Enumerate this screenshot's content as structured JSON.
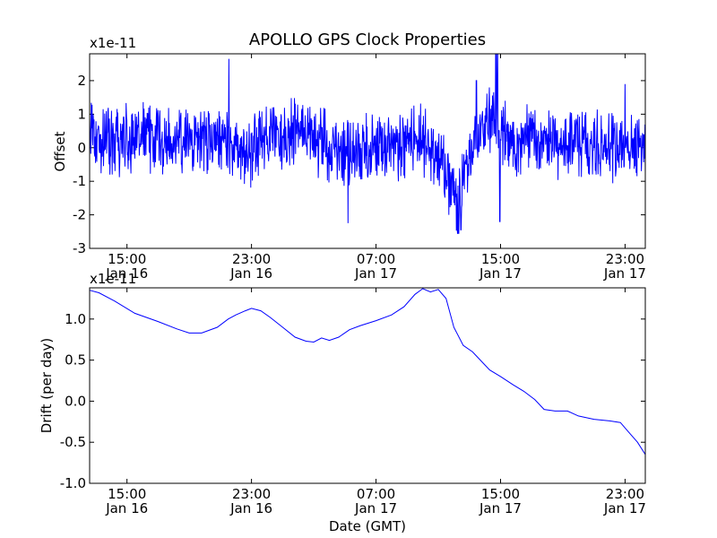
{
  "figure_title": "APOLLO GPS Clock Properties",
  "chart_data": [
    {
      "type": "line",
      "title": "APOLLO GPS Clock Properties",
      "ylabel": "Offset",
      "xlabel": "",
      "y_multiplier": "x1e-11",
      "ylim": [
        -3,
        2.8
      ],
      "yticks": [
        -3,
        -2,
        -1,
        0,
        1,
        2
      ],
      "ytick_labels": [
        "-3",
        "-2",
        "-1",
        "0",
        "1",
        "2"
      ],
      "xlim_hours": [
        12.6,
        48.3
      ],
      "xticks_hours": [
        15,
        23,
        31,
        39,
        47
      ],
      "xtick_labels": [
        {
          "time": "15:00",
          "date": "Jan 16"
        },
        {
          "time": "23:00",
          "date": "Jan 16"
        },
        {
          "time": "07:00",
          "date": "Jan 17"
        },
        {
          "time": "15:00",
          "date": "Jan 17"
        },
        {
          "time": "23:00",
          "date": "Jan 17"
        }
      ],
      "line_color": "#0000ff",
      "series": [
        {
          "name": "Offset",
          "note": "high-frequency noise around a slowly varying level (units of 1e-11)",
          "level_points": [
            [
              12.6,
              0.3
            ],
            [
              14.0,
              0.1
            ],
            [
              16.0,
              0.4
            ],
            [
              18.0,
              0.1
            ],
            [
              19.5,
              0.2
            ],
            [
              21.0,
              0.3
            ],
            [
              22.5,
              -0.2
            ],
            [
              24.0,
              0.3
            ],
            [
              26.0,
              0.5
            ],
            [
              27.5,
              0.2
            ],
            [
              29.0,
              -0.1
            ],
            [
              30.5,
              0.0
            ],
            [
              32.0,
              0.0
            ],
            [
              34.0,
              0.3
            ],
            [
              35.5,
              -0.8
            ],
            [
              36.3,
              -1.6
            ],
            [
              37.0,
              -0.3
            ],
            [
              38.0,
              0.8
            ],
            [
              39.0,
              0.5
            ],
            [
              40.5,
              0.2
            ],
            [
              42.0,
              0.1
            ],
            [
              44.0,
              0.1
            ],
            [
              46.0,
              0.0
            ],
            [
              48.3,
              0.0
            ]
          ],
          "spikes": [
            [
              21.55,
              2.65
            ],
            [
              29.2,
              -2.25
            ],
            [
              36.3,
              -2.55
            ],
            [
              36.45,
              -2.45
            ],
            [
              37.45,
              2.0
            ],
            [
              38.7,
              2.8
            ],
            [
              38.8,
              2.8
            ],
            [
              38.95,
              -2.2
            ],
            [
              47.0,
              1.9
            ]
          ]
        }
      ]
    },
    {
      "type": "line",
      "title": "",
      "ylabel": "Drift (per day)",
      "xlabel": "Date (GMT)",
      "y_multiplier": "x1e-11",
      "ylim": [
        -1.0,
        1.38
      ],
      "yticks": [
        -1.0,
        -0.5,
        0.0,
        0.5,
        1.0
      ],
      "ytick_labels": [
        "-1.0",
        "-0.5",
        "0.0",
        "0.5",
        "1.0"
      ],
      "xlim_hours": [
        12.6,
        48.3
      ],
      "xticks_hours": [
        15,
        23,
        31,
        39,
        47
      ],
      "xtick_labels": [
        {
          "time": "15:00",
          "date": "Jan 16"
        },
        {
          "time": "23:00",
          "date": "Jan 16"
        },
        {
          "time": "07:00",
          "date": "Jan 17"
        },
        {
          "time": "15:00",
          "date": "Jan 17"
        },
        {
          "time": "23:00",
          "date": "Jan 17"
        }
      ],
      "line_color": "#0000ff",
      "series": [
        {
          "name": "Drift",
          "points": [
            [
              12.6,
              1.35
            ],
            [
              13.2,
              1.32
            ],
            [
              14.2,
              1.22
            ],
            [
              15.5,
              1.07
            ],
            [
              17.0,
              0.97
            ],
            [
              18.2,
              0.88
            ],
            [
              19.0,
              0.83
            ],
            [
              19.8,
              0.83
            ],
            [
              20.8,
              0.9
            ],
            [
              21.5,
              1.0
            ],
            [
              22.0,
              1.05
            ],
            [
              22.6,
              1.1
            ],
            [
              23.0,
              1.13
            ],
            [
              23.6,
              1.1
            ],
            [
              24.2,
              1.02
            ],
            [
              25.0,
              0.9
            ],
            [
              25.8,
              0.78
            ],
            [
              26.5,
              0.73
            ],
            [
              27.0,
              0.72
            ],
            [
              27.5,
              0.77
            ],
            [
              28.0,
              0.74
            ],
            [
              28.6,
              0.78
            ],
            [
              29.3,
              0.87
            ],
            [
              30.0,
              0.92
            ],
            [
              31.0,
              0.98
            ],
            [
              32.0,
              1.05
            ],
            [
              32.8,
              1.15
            ],
            [
              33.5,
              1.3
            ],
            [
              34.0,
              1.37
            ],
            [
              34.5,
              1.33
            ],
            [
              35.0,
              1.36
            ],
            [
              35.5,
              1.25
            ],
            [
              36.0,
              0.9
            ],
            [
              36.6,
              0.68
            ],
            [
              37.2,
              0.6
            ],
            [
              37.8,
              0.48
            ],
            [
              38.3,
              0.38
            ],
            [
              39.0,
              0.3
            ],
            [
              39.8,
              0.2
            ],
            [
              40.5,
              0.12
            ],
            [
              41.2,
              0.02
            ],
            [
              41.8,
              -0.1
            ],
            [
              42.5,
              -0.12
            ],
            [
              43.3,
              -0.12
            ],
            [
              44.0,
              -0.18
            ],
            [
              45.0,
              -0.22
            ],
            [
              46.0,
              -0.24
            ],
            [
              46.7,
              -0.26
            ],
            [
              47.2,
              -0.37
            ],
            [
              47.8,
              -0.5
            ],
            [
              48.3,
              -0.65
            ]
          ]
        }
      ]
    }
  ]
}
